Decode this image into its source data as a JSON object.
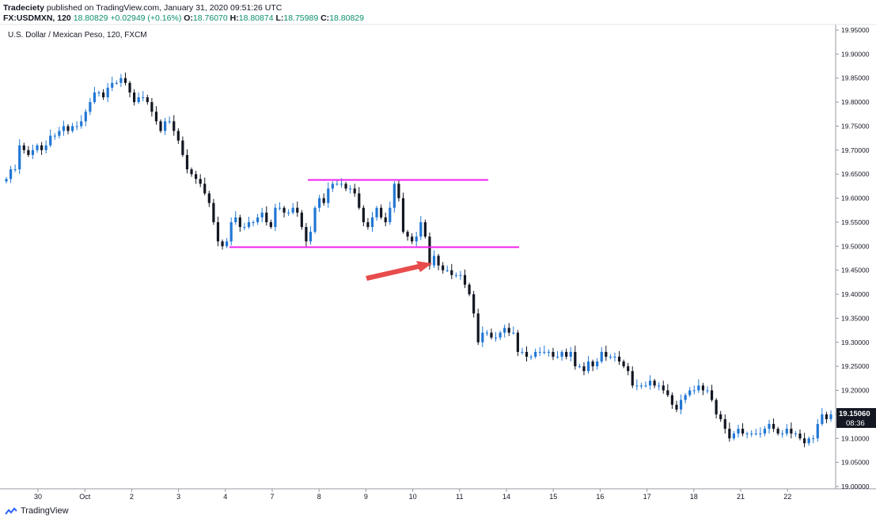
{
  "header": {
    "publisher": "Tradeciety",
    "published_text": "published on TradingView.com, January 31, 2020 09:51:26 UTC",
    "symbol": "FX:USDMXN, 120",
    "last": "18.80829",
    "change": "+0.02949 (+0.16%)",
    "o_label": "O:",
    "o_value": "18.76070",
    "h_label": "H:",
    "h_value": "18.80874",
    "l_label": "L:",
    "l_value": "18.75989",
    "c_label": "C:",
    "c_value": "18.80829"
  },
  "footer": {
    "brand": "TradingView"
  },
  "colors": {
    "up": "#2177d4",
    "down": "#131722",
    "level": "#f01ff0",
    "arrow": "#e84c4c",
    "price_tag": "#131722"
  },
  "chart_data": {
    "type": "candlestick",
    "title": "U.S. Dollar / Mexican Peso, 120, FXCM",
    "ylim": [
      19.0,
      19.95
    ],
    "yticks": [
      "19.95000",
      "19.90000",
      "19.85000",
      "19.80000",
      "19.75000",
      "19.70000",
      "19.65000",
      "19.60000",
      "19.55000",
      "19.50000",
      "19.45000",
      "19.40000",
      "19.35000",
      "19.30000",
      "19.25000",
      "19.20000",
      "19.15000",
      "19.10000",
      "19.05000",
      "19.00000"
    ],
    "xticks": [
      "30",
      "Oct",
      "2",
      "3",
      "4",
      "7",
      "8",
      "9",
      "10",
      "11",
      "14",
      "15",
      "16",
      "17",
      "18",
      "21",
      "22"
    ],
    "last_price": "19.15060",
    "countdown": "08:36",
    "levels": [
      {
        "name": "resistance",
        "y": 19.638,
        "from": "8",
        "to": "11"
      },
      {
        "name": "support",
        "y": 19.498,
        "from": "4",
        "to": "14"
      }
    ],
    "annotation": "arrow pointing to support breakout",
    "close_path": [
      19.64,
      19.66,
      19.66,
      19.71,
      19.7,
      19.69,
      19.7,
      19.71,
      19.7,
      19.71,
      19.73,
      19.73,
      19.74,
      19.75,
      19.74,
      19.75,
      19.75,
      19.76,
      19.78,
      19.8,
      19.82,
      19.82,
      19.81,
      19.83,
      19.84,
      19.84,
      19.85,
      19.84,
      19.82,
      19.8,
      19.81,
      19.81,
      19.8,
      19.78,
      19.76,
      19.74,
      19.76,
      19.76,
      19.74,
      19.72,
      19.69,
      19.66,
      19.65,
      19.64,
      19.63,
      19.61,
      19.59,
      19.55,
      19.51,
      19.5,
      19.51,
      19.55,
      19.56,
      19.54,
      19.54,
      19.55,
      19.55,
      19.56,
      19.57,
      19.55,
      19.54,
      19.58,
      19.58,
      19.57,
      19.57,
      19.58,
      19.57,
      19.54,
      19.51,
      19.53,
      19.58,
      19.6,
      19.59,
      19.62,
      19.63,
      19.63,
      19.63,
      19.62,
      19.62,
      19.61,
      19.58,
      19.55,
      19.54,
      19.56,
      19.58,
      19.56,
      19.55,
      19.58,
      19.63,
      19.6,
      19.53,
      19.52,
      19.51,
      19.52,
      19.55,
      19.52,
      19.46,
      19.48,
      19.46,
      19.45,
      19.45,
      19.44,
      19.44,
      19.44,
      19.42,
      19.4,
      19.36,
      19.3,
      19.32,
      19.32,
      19.31,
      19.31,
      19.32,
      19.33,
      19.32,
      19.32,
      19.28,
      19.28,
      19.27,
      19.27,
      19.28,
      19.28,
      19.28,
      19.28,
      19.27,
      19.27,
      19.28,
      19.27,
      19.28,
      19.25,
      19.25,
      19.24,
      19.26,
      19.25,
      19.26,
      19.28,
      19.27,
      19.27,
      19.27,
      19.26,
      19.25,
      19.24,
      19.21,
      19.21,
      19.21,
      19.21,
      19.22,
      19.21,
      19.21,
      19.2,
      19.19,
      19.17,
      19.16,
      19.18,
      19.19,
      19.2,
      19.2,
      19.21,
      19.2,
      19.2,
      19.18,
      19.15,
      19.14,
      19.12,
      19.1,
      19.11,
      19.12,
      19.11,
      19.11,
      19.11,
      19.11,
      19.11,
      19.12,
      19.13,
      19.12,
      19.11,
      19.11,
      19.12,
      19.11,
      19.11,
      19.1,
      19.09,
      19.1,
      19.1,
      19.13,
      19.15,
      19.14,
      19.15
    ]
  }
}
